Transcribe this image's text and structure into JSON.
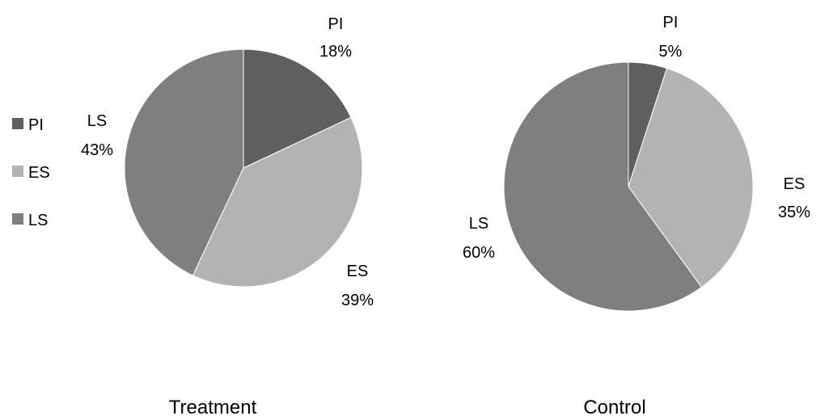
{
  "legend": {
    "items": [
      {
        "label": "PI",
        "color": "#5f5f5f"
      },
      {
        "label": "ES",
        "color": "#b3b3b3"
      },
      {
        "label": "LS",
        "color": "#7f7f7f"
      }
    ]
  },
  "chart_data": [
    {
      "type": "pie",
      "title": "Treatment",
      "start_angle": "12 o'clock",
      "direction": "clockwise",
      "slices": [
        {
          "label": "PI",
          "value": 18,
          "value_label": "18%",
          "color": "#5f5f5f"
        },
        {
          "label": "ES",
          "value": 39,
          "value_label": "39%",
          "color": "#b3b3b3"
        },
        {
          "label": "LS",
          "value": 43,
          "value_label": "43%",
          "color": "#7f7f7f"
        }
      ]
    },
    {
      "type": "pie",
      "title": "Control",
      "start_angle": "12 o'clock",
      "direction": "clockwise",
      "slices": [
        {
          "label": "PI",
          "value": 5,
          "value_label": "5%",
          "color": "#5f5f5f"
        },
        {
          "label": "ES",
          "value": 35,
          "value_label": "35%",
          "color": "#b3b3b3"
        },
        {
          "label": "LS",
          "value": 60,
          "value_label": "60%",
          "color": "#7f7f7f"
        }
      ]
    }
  ]
}
